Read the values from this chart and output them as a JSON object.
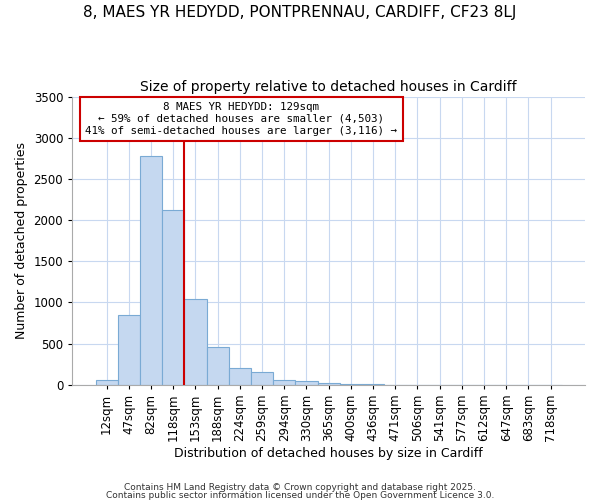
{
  "title": "8, MAES YR HEDYDD, PONTPRENNAU, CARDIFF, CF23 8LJ",
  "subtitle": "Size of property relative to detached houses in Cardiff",
  "xlabel": "Distribution of detached houses by size in Cardiff",
  "ylabel": "Number of detached properties",
  "bar_color": "#c5d8f0",
  "bar_edge_color": "#7aaad4",
  "background_color": "#ffffff",
  "fig_background_color": "#ffffff",
  "grid_color": "#c8d8f0",
  "bins": [
    "12sqm",
    "47sqm",
    "82sqm",
    "118sqm",
    "153sqm",
    "188sqm",
    "224sqm",
    "259sqm",
    "294sqm",
    "330sqm",
    "365sqm",
    "400sqm",
    "436sqm",
    "471sqm",
    "506sqm",
    "541sqm",
    "577sqm",
    "612sqm",
    "647sqm",
    "683sqm",
    "718sqm"
  ],
  "values": [
    55,
    850,
    2780,
    2120,
    1040,
    460,
    200,
    150,
    60,
    40,
    20,
    10,
    5,
    3,
    2,
    1,
    0,
    0,
    0,
    0,
    0
  ],
  "vline_x": 3.5,
  "vline_color": "#cc0000",
  "annotation_line1": "8 MAES YR HEDYDD: 129sqm",
  "annotation_line2": "← 59% of detached houses are smaller (4,503)",
  "annotation_line3": "41% of semi-detached houses are larger (3,116) →",
  "annotation_box_color": "#cc0000",
  "ylim": [
    0,
    3500
  ],
  "yticks": [
    0,
    500,
    1000,
    1500,
    2000,
    2500,
    3000,
    3500
  ],
  "footnote1": "Contains HM Land Registry data © Crown copyright and database right 2025.",
  "footnote2": "Contains public sector information licensed under the Open Government Licence 3.0.",
  "title_fontsize": 11,
  "subtitle_fontsize": 10,
  "tick_fontsize": 8.5,
  "ylabel_fontsize": 9,
  "xlabel_fontsize": 9,
  "footnote_fontsize": 6.5
}
